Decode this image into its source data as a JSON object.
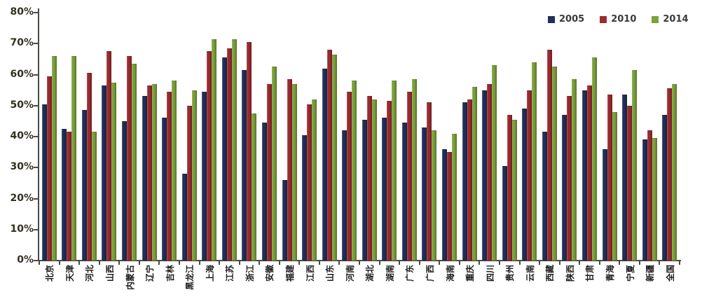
{
  "chart_data": {
    "type": "bar",
    "title": "",
    "xlabel": "",
    "ylabel": "",
    "ylim": [
      0,
      80
    ],
    "ytick_step": 10,
    "ytick_suffix": "%",
    "grid": false,
    "legend_position": "top-right",
    "axis_color": "#4a4a44",
    "categories": [
      "北京",
      "天津",
      "河北",
      "山西",
      "内蒙古",
      "辽宁",
      "吉林",
      "黑龙江",
      "上海",
      "江苏",
      "浙江",
      "安徽",
      "福建",
      "江西",
      "山东",
      "河南",
      "湖北",
      "湖南",
      "广东",
      "广西",
      "海南",
      "重庆",
      "四川",
      "贵州",
      "云南",
      "西藏",
      "陕西",
      "甘肃",
      "青海",
      "宁夏",
      "新疆",
      "全国"
    ],
    "series": [
      {
        "name": "2005",
        "color": "#203059",
        "values": [
          50.5,
          42.5,
          48.5,
          56.5,
          45,
          53,
          46,
          28,
          54.5,
          65.5,
          61.5,
          44.5,
          26,
          40.5,
          62,
          42,
          45.5,
          46,
          44.5,
          43,
          36,
          51,
          55,
          30.5,
          49,
          41.5,
          47,
          55,
          36,
          53.5,
          39,
          47
        ]
      },
      {
        "name": "2010",
        "color": "#9c2b31",
        "values": [
          59.5,
          41.5,
          60.5,
          67.5,
          66,
          56.5,
          54.5,
          50,
          67.5,
          68.5,
          70.5,
          57,
          58.5,
          50.5,
          68,
          54.5,
          53,
          51.5,
          54.5,
          51,
          35,
          52,
          57,
          47,
          55,
          68,
          53,
          56.5,
          53.5,
          50,
          42,
          55.5
        ]
      },
      {
        "name": "2014",
        "color": "#7ba23c",
        "values": [
          66,
          66,
          41.5,
          57.5,
          63.5,
          57,
          58,
          55,
          71.5,
          71.5,
          47.5,
          62.5,
          57,
          52,
          66.5,
          58,
          52,
          58,
          58.5,
          42,
          41,
          56,
          63,
          45.5,
          64,
          62.5,
          58.5,
          65.5,
          48,
          61.5,
          39.5,
          57
        ]
      }
    ]
  }
}
